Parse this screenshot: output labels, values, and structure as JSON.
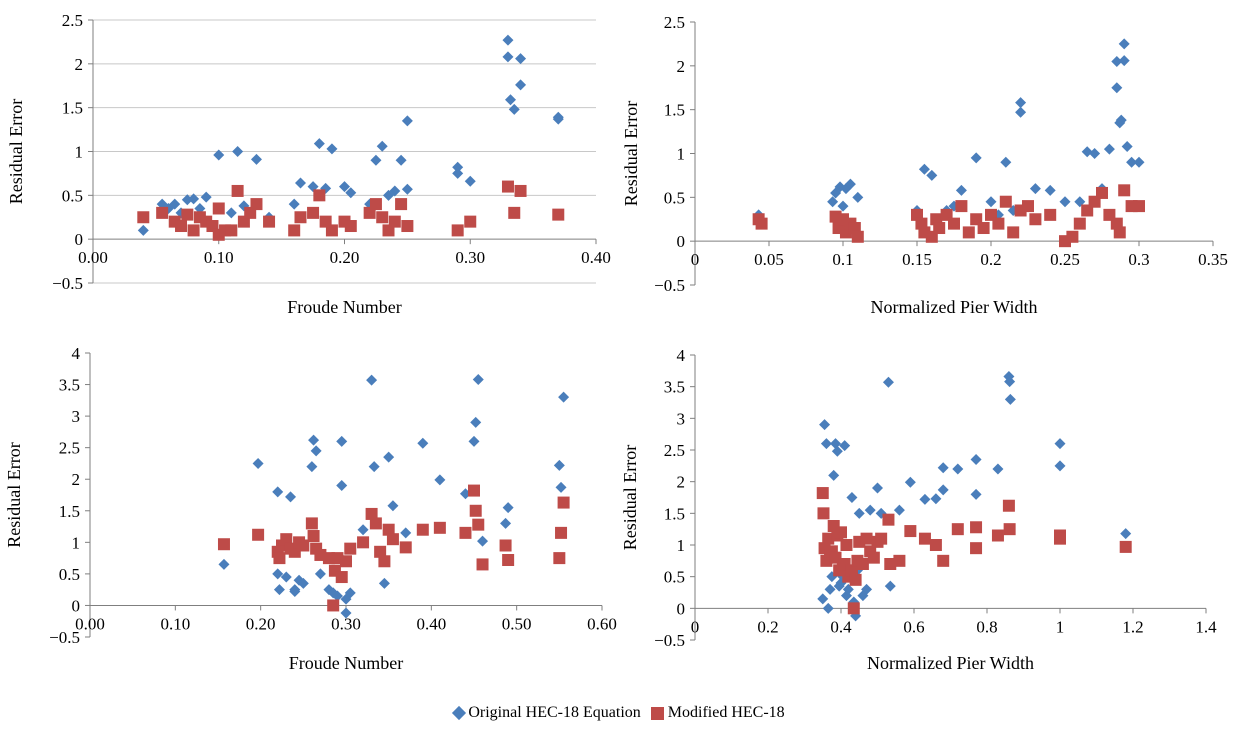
{
  "legend": {
    "series": [
      {
        "name": "Original HEC-18 Equation",
        "color": "#4a7ebb",
        "marker": "diamond"
      },
      {
        "name": "Modified HEC-18",
        "color": "#be4b48",
        "marker": "square"
      }
    ]
  },
  "chart_data": [
    {
      "type": "scatter",
      "title": "",
      "xlabel": "Froude Number",
      "ylabel": "Residual Error",
      "xlim": [
        0,
        0.4
      ],
      "ylim": [
        -0.5,
        2.5
      ],
      "xticks": [
        "0.00",
        "0.10",
        "0.20",
        "0.30",
        "0.40"
      ],
      "yticks": [
        "−0.5",
        "0",
        "0.5",
        "1",
        "1.5",
        "2",
        "2.5"
      ],
      "grid": "horizontal",
      "series": [
        {
          "name": "Original HEC-18 Equation",
          "color": "#4a7ebb",
          "marker": "diamond",
          "x": [
            0.04,
            0.055,
            0.06,
            0.065,
            0.07,
            0.075,
            0.08,
            0.085,
            0.09,
            0.1,
            0.11,
            0.115,
            0.12,
            0.13,
            0.14,
            0.16,
            0.165,
            0.175,
            0.18,
            0.185,
            0.19,
            0.2,
            0.205,
            0.22,
            0.225,
            0.23,
            0.235,
            0.24,
            0.245,
            0.25,
            0.25,
            0.29,
            0.29,
            0.3,
            0.33,
            0.33,
            0.332,
            0.335,
            0.34,
            0.34,
            0.37,
            0.37
          ],
          "y": [
            0.1,
            0.4,
            0.35,
            0.4,
            0.3,
            0.45,
            0.46,
            0.35,
            0.48,
            0.96,
            0.3,
            1.0,
            0.38,
            0.91,
            0.25,
            0.4,
            0.64,
            0.6,
            1.09,
            0.58,
            1.03,
            0.6,
            0.53,
            0.4,
            0.9,
            1.06,
            0.5,
            0.55,
            0.9,
            0.57,
            1.35,
            0.82,
            0.75,
            0.66,
            2.27,
            2.08,
            1.59,
            1.48,
            2.06,
            1.76,
            1.37,
            1.39
          ]
        },
        {
          "name": "Modified HEC-18",
          "color": "#be4b48",
          "marker": "square",
          "x": [
            0.04,
            0.055,
            0.065,
            0.07,
            0.075,
            0.08,
            0.085,
            0.09,
            0.095,
            0.1,
            0.1,
            0.105,
            0.11,
            0.115,
            0.12,
            0.125,
            0.13,
            0.14,
            0.16,
            0.165,
            0.175,
            0.18,
            0.185,
            0.19,
            0.2,
            0.205,
            0.22,
            0.225,
            0.23,
            0.235,
            0.24,
            0.245,
            0.25,
            0.29,
            0.3,
            0.33,
            0.335,
            0.34,
            0.37
          ],
          "y": [
            0.25,
            0.3,
            0.2,
            0.15,
            0.28,
            0.1,
            0.25,
            0.2,
            0.15,
            0.05,
            0.35,
            0.1,
            0.1,
            0.55,
            0.2,
            0.3,
            0.4,
            0.2,
            0.1,
            0.25,
            0.3,
            0.5,
            0.2,
            0.1,
            0.2,
            0.15,
            0.3,
            0.4,
            0.25,
            0.1,
            0.2,
            0.4,
            0.15,
            0.1,
            0.2,
            0.6,
            0.3,
            0.55,
            0.28
          ]
        }
      ]
    },
    {
      "type": "scatter",
      "title": "",
      "xlabel": "Normalized Pier Width",
      "ylabel": "Residual Error",
      "xlim": [
        0,
        0.35
      ],
      "ylim": [
        -0.5,
        2.5
      ],
      "xticks": [
        "0",
        "0.05",
        "0.1",
        "0.15",
        "0.2",
        "0.25",
        "0.3",
        "0.35"
      ],
      "yticks": [
        "−0.5",
        "0",
        "0.5",
        "1",
        "1.5",
        "2",
        "2.5"
      ],
      "grid": "none",
      "series": [
        {
          "name": "Original HEC-18 Equation",
          "color": "#4a7ebb",
          "marker": "diamond",
          "x": [
            0.043,
            0.093,
            0.095,
            0.098,
            0.1,
            0.102,
            0.105,
            0.11,
            0.15,
            0.155,
            0.16,
            0.17,
            0.175,
            0.18,
            0.19,
            0.2,
            0.205,
            0.21,
            0.215,
            0.22,
            0.22,
            0.225,
            0.23,
            0.24,
            0.25,
            0.26,
            0.265,
            0.27,
            0.275,
            0.28,
            0.285,
            0.285,
            0.287,
            0.288,
            0.29,
            0.29,
            0.292,
            0.295,
            0.3
          ],
          "y": [
            0.3,
            0.45,
            0.55,
            0.62,
            0.4,
            0.6,
            0.65,
            0.5,
            0.35,
            0.82,
            0.75,
            0.35,
            0.4,
            0.58,
            0.95,
            0.45,
            0.3,
            0.9,
            0.35,
            1.58,
            1.47,
            0.4,
            0.6,
            0.58,
            0.45,
            0.45,
            1.02,
            1.0,
            0.6,
            1.05,
            2.05,
            1.75,
            1.35,
            1.38,
            2.25,
            2.06,
            1.08,
            0.9,
            0.9
          ]
        },
        {
          "name": "Modified HEC-18",
          "color": "#be4b48",
          "marker": "square",
          "x": [
            0.043,
            0.045,
            0.095,
            0.097,
            0.1,
            0.102,
            0.105,
            0.108,
            0.11,
            0.15,
            0.153,
            0.155,
            0.16,
            0.163,
            0.165,
            0.17,
            0.175,
            0.18,
            0.185,
            0.19,
            0.195,
            0.2,
            0.205,
            0.21,
            0.215,
            0.22,
            0.225,
            0.23,
            0.24,
            0.25,
            0.255,
            0.26,
            0.265,
            0.27,
            0.275,
            0.28,
            0.285,
            0.287,
            0.29,
            0.295,
            0.3
          ],
          "y": [
            0.25,
            0.2,
            0.28,
            0.15,
            0.25,
            0.1,
            0.2,
            0.15,
            0.05,
            0.3,
            0.2,
            0.1,
            0.05,
            0.25,
            0.15,
            0.3,
            0.2,
            0.4,
            0.1,
            0.25,
            0.15,
            0.3,
            0.2,
            0.45,
            0.1,
            0.35,
            0.4,
            0.25,
            0.3,
            0.0,
            0.05,
            0.2,
            0.35,
            0.45,
            0.55,
            0.3,
            0.2,
            0.1,
            0.58,
            0.4,
            0.4
          ]
        }
      ]
    },
    {
      "type": "scatter",
      "title": "",
      "xlabel": "Froude Number",
      "ylabel": "Residual Error",
      "xlim": [
        0,
        0.6
      ],
      "ylim": [
        -0.5,
        4
      ],
      "xticks": [
        "0.00",
        "0.10",
        "0.20",
        "0.30",
        "0.40",
        "0.50",
        "0.60"
      ],
      "yticks": [
        "−0.5",
        "0",
        "0.5",
        "1",
        "1.5",
        "2",
        "2.5",
        "3",
        "3.5",
        "4"
      ],
      "grid": "none",
      "series": [
        {
          "name": "Original HEC-18 Equation",
          "color": "#4a7ebb",
          "marker": "diamond",
          "x": [
            0.157,
            0.197,
            0.22,
            0.22,
            0.222,
            0.23,
            0.235,
            0.24,
            0.24,
            0.245,
            0.25,
            0.26,
            0.262,
            0.265,
            0.27,
            0.28,
            0.285,
            0.29,
            0.295,
            0.295,
            0.3,
            0.3,
            0.305,
            0.32,
            0.33,
            0.333,
            0.345,
            0.35,
            0.355,
            0.37,
            0.39,
            0.41,
            0.44,
            0.45,
            0.452,
            0.455,
            0.46,
            0.487,
            0.49,
            0.55,
            0.552,
            0.555
          ],
          "y": [
            0.65,
            2.25,
            1.8,
            0.5,
            0.25,
            0.45,
            1.72,
            0.25,
            0.22,
            0.4,
            0.35,
            2.2,
            2.62,
            2.45,
            0.5,
            0.25,
            0.2,
            0.15,
            2.6,
            1.9,
            0.1,
            -0.12,
            0.2,
            1.2,
            3.57,
            2.2,
            0.35,
            2.35,
            1.58,
            1.15,
            2.57,
            1.99,
            1.77,
            2.6,
            2.9,
            3.58,
            1.02,
            1.3,
            1.55,
            2.22,
            1.87,
            3.3
          ]
        },
        {
          "name": "Modified HEC-18",
          "color": "#be4b48",
          "marker": "square",
          "x": [
            0.157,
            0.197,
            0.22,
            0.222,
            0.225,
            0.23,
            0.235,
            0.24,
            0.245,
            0.25,
            0.26,
            0.262,
            0.265,
            0.27,
            0.28,
            0.285,
            0.287,
            0.29,
            0.295,
            0.3,
            0.305,
            0.32,
            0.33,
            0.335,
            0.34,
            0.345,
            0.35,
            0.355,
            0.37,
            0.39,
            0.41,
            0.44,
            0.45,
            0.452,
            0.455,
            0.46,
            0.487,
            0.49,
            0.55,
            0.552,
            0.555
          ],
          "y": [
            0.97,
            1.12,
            0.85,
            0.75,
            0.95,
            1.05,
            0.9,
            0.85,
            1.0,
            0.95,
            1.3,
            1.1,
            0.9,
            0.8,
            0.75,
            0.0,
            0.55,
            0.75,
            0.45,
            0.7,
            0.9,
            1.0,
            1.45,
            1.3,
            0.85,
            0.7,
            1.2,
            1.05,
            0.92,
            1.2,
            1.23,
            1.15,
            1.82,
            1.5,
            1.28,
            0.65,
            0.95,
            0.72,
            0.75,
            1.15,
            1.63
          ]
        }
      ]
    },
    {
      "type": "scatter",
      "title": "",
      "xlabel": "Normalized Pier Width",
      "ylabel": "Residual Error",
      "xlim": [
        0,
        1.4
      ],
      "ylim": [
        -0.5,
        4
      ],
      "xticks": [
        "0",
        "0.2",
        "0.4",
        "0.6",
        "0.8",
        "1",
        "1.2",
        "1.4"
      ],
      "yticks": [
        "−0.5",
        "0",
        "0.5",
        "1",
        "1.5",
        "2",
        "2.5",
        "3",
        "3.5",
        "4"
      ],
      "grid": "none",
      "series": [
        {
          "name": "Original HEC-18 Equation",
          "color": "#4a7ebb",
          "marker": "diamond",
          "x": [
            0.35,
            0.355,
            0.36,
            0.365,
            0.37,
            0.375,
            0.38,
            0.385,
            0.39,
            0.395,
            0.4,
            0.405,
            0.41,
            0.415,
            0.42,
            0.43,
            0.435,
            0.44,
            0.445,
            0.45,
            0.46,
            0.47,
            0.48,
            0.5,
            0.51,
            0.53,
            0.535,
            0.56,
            0.59,
            0.63,
            0.66,
            0.68,
            0.68,
            0.72,
            0.77,
            0.77,
            0.83,
            0.86,
            0.862,
            0.864,
            1.0,
            1.0,
            1.18
          ],
          "y": [
            0.15,
            2.9,
            2.6,
            0.0,
            0.3,
            0.5,
            2.1,
            2.6,
            2.48,
            0.35,
            0.4,
            0.5,
            2.57,
            0.2,
            0.3,
            1.75,
            0.1,
            -0.12,
            0.6,
            1.5,
            0.2,
            0.3,
            1.55,
            1.9,
            1.5,
            3.57,
            0.35,
            1.55,
            1.99,
            1.72,
            1.73,
            2.22,
            1.87,
            2.2,
            2.35,
            1.8,
            2.2,
            3.66,
            3.58,
            3.3,
            2.6,
            2.25,
            1.18
          ]
        },
        {
          "name": "Modified HEC-18",
          "color": "#be4b48",
          "marker": "square",
          "x": [
            0.35,
            0.352,
            0.355,
            0.36,
            0.365,
            0.37,
            0.375,
            0.38,
            0.385,
            0.39,
            0.395,
            0.4,
            0.405,
            0.41,
            0.415,
            0.42,
            0.43,
            0.435,
            0.44,
            0.445,
            0.45,
            0.46,
            0.47,
            0.48,
            0.49,
            0.5,
            0.51,
            0.53,
            0.535,
            0.56,
            0.59,
            0.63,
            0.66,
            0.68,
            0.72,
            0.77,
            0.77,
            0.83,
            0.86,
            0.862,
            1.0,
            1.0,
            1.18
          ],
          "y": [
            1.82,
            1.5,
            0.95,
            0.75,
            1.1,
            0.85,
            0.9,
            1.3,
            0.8,
            1.15,
            0.6,
            1.2,
            0.65,
            0.7,
            1.0,
            0.5,
            0.6,
            0.0,
            0.45,
            0.75,
            1.05,
            0.7,
            1.1,
            0.9,
            0.8,
            1.05,
            1.1,
            1.4,
            0.7,
            0.75,
            1.22,
            1.1,
            1.0,
            0.75,
            1.25,
            0.95,
            1.28,
            1.15,
            1.62,
            1.25,
            1.15,
            1.1,
            0.97
          ]
        }
      ]
    }
  ]
}
